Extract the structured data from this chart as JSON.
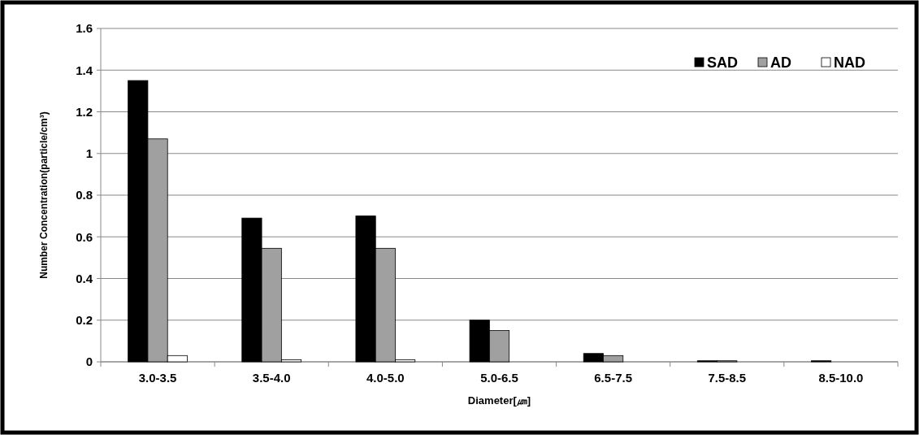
{
  "chart_data": {
    "type": "bar",
    "xlabel": "Diameter[㎛]",
    "ylabel": "Number Concentration(particle/cm³)",
    "categories": [
      "3.0-3.5",
      "3.5-4.0",
      "4.0-5.0",
      "5.0-6.5",
      "6.5-7.5",
      "7.5-8.5",
      "8.5-10.0"
    ],
    "series": [
      {
        "name": "SAD",
        "color": "#000000",
        "values": [
          1.35,
          0.69,
          0.7,
          0.2,
          0.04,
          0.005,
          0.005
        ]
      },
      {
        "name": "AD",
        "color": "#a0a0a0",
        "values": [
          1.07,
          0.545,
          0.545,
          0.15,
          0.03,
          0.005,
          0
        ]
      },
      {
        "name": "NAD",
        "color": "#ffffff",
        "values": [
          0.03,
          0.01,
          0.01,
          0,
          0,
          0,
          0
        ]
      }
    ],
    "ylim": [
      0,
      1.6
    ],
    "yticks": [
      0,
      0.2,
      0.4,
      0.6,
      0.8,
      1,
      1.2,
      1.4,
      1.6
    ],
    "grid": "y",
    "legend": "top right"
  }
}
